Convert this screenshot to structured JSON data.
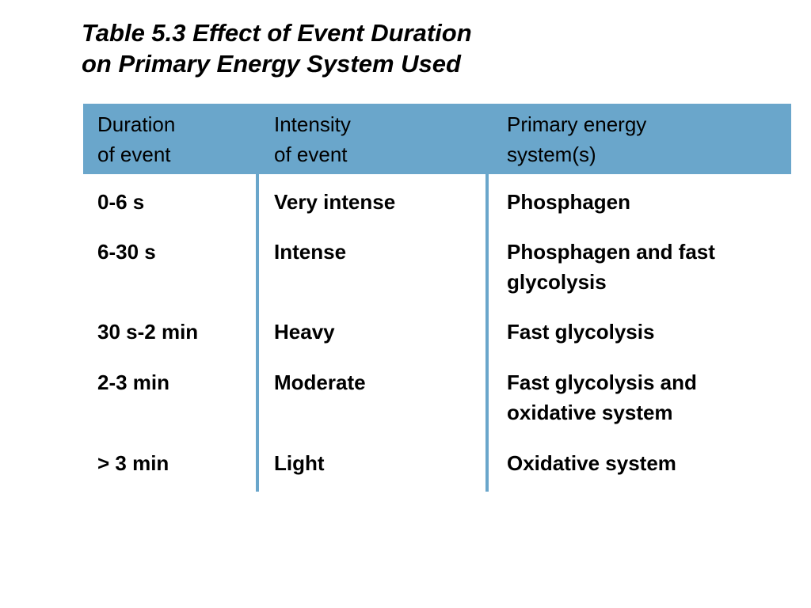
{
  "title": {
    "line1": "Table 5.3  Effect of Event Duration",
    "line2": "on Primary Energy System Used"
  },
  "columns": [
    {
      "line1": "Duration",
      "line2": "of event"
    },
    {
      "line1": "Intensity",
      "line2": "of event"
    },
    {
      "line1": "Primary energy",
      "line2": "system(s)"
    }
  ],
  "rows": [
    {
      "duration": "0-6 s",
      "intensity": "Very intense",
      "system": [
        "Phosphagen"
      ]
    },
    {
      "duration": "6-30 s",
      "intensity": "Intense",
      "system": [
        "Phosphagen and fast",
        "glycolysis"
      ]
    },
    {
      "duration": "30 s-2 min",
      "intensity": "Heavy",
      "system": [
        "Fast glycolysis"
      ]
    },
    {
      "duration": "2-3 min",
      "intensity": "Moderate",
      "system": [
        "Fast glycolysis and",
        "oxidative system"
      ]
    },
    {
      "duration": "> 3 min",
      "intensity": "Light",
      "system": [
        "Oxidative system"
      ]
    }
  ],
  "colors": {
    "header_background": "#6aa6cb",
    "column_rule": "#6aa6cb",
    "text": "#000000"
  }
}
